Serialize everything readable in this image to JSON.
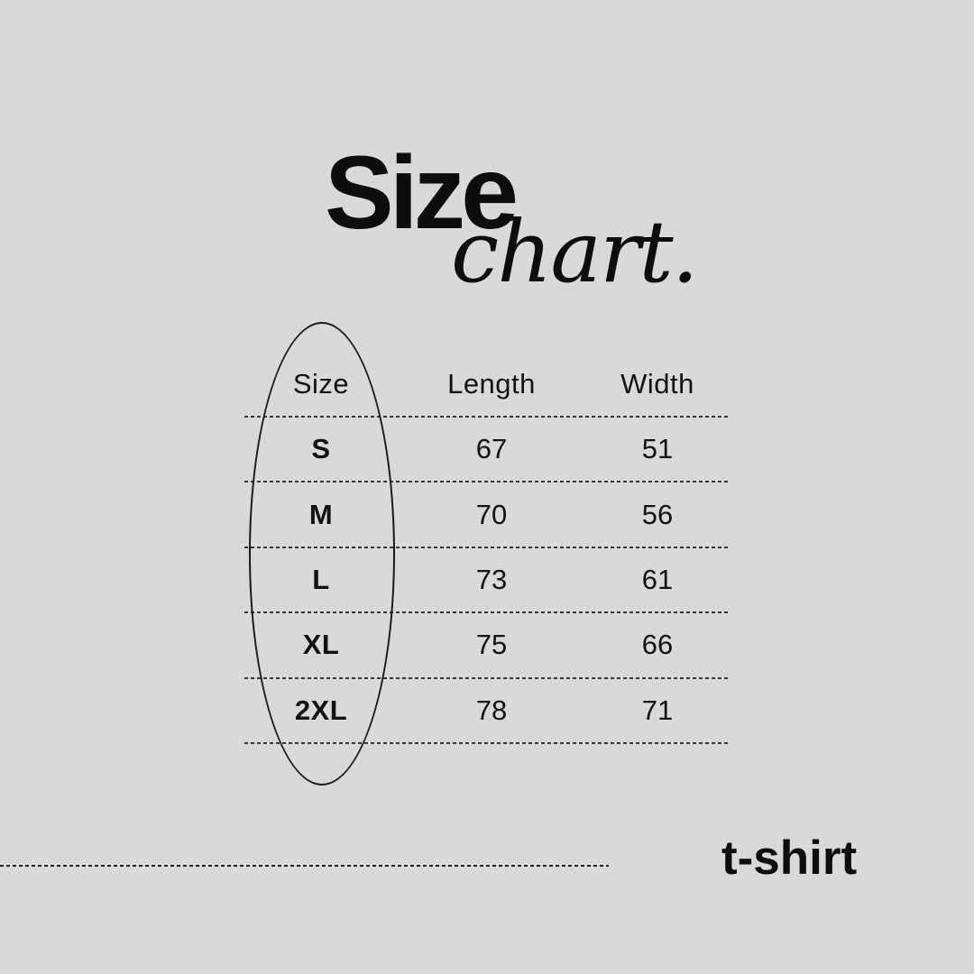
{
  "colors": {
    "background": "#d9d9d8",
    "ink": "#121212",
    "title_ink": "#0d0d0d"
  },
  "title": {
    "main": "Size",
    "script": "chart."
  },
  "table": {
    "headers": [
      "Size",
      "Length",
      "Width"
    ],
    "rows": [
      {
        "size": "S",
        "length": "67",
        "width": "51"
      },
      {
        "size": "M",
        "length": "70",
        "width": "56"
      },
      {
        "size": "L",
        "length": "73",
        "width": "61"
      },
      {
        "size": "XL",
        "length": "75",
        "width": "66"
      },
      {
        "size": "2XL",
        "length": "78",
        "width": "71"
      }
    ]
  },
  "footer": {
    "product_label": "t-shirt"
  },
  "chart_data": {
    "type": "table",
    "title": "Size chart.",
    "columns": [
      "Size",
      "Length",
      "Width"
    ],
    "rows": [
      [
        "S",
        67,
        51
      ],
      [
        "M",
        70,
        56
      ],
      [
        "L",
        73,
        61
      ],
      [
        "XL",
        75,
        66
      ],
      [
        "2XL",
        78,
        71
      ]
    ],
    "annotations": [
      "hand-drawn ellipse circling the Size column",
      "dashed horizontal row separators",
      "bottom-left dashed rule",
      "t-shirt label bottom-right"
    ],
    "legend_position": "none",
    "grid": "dashed-horizontal-only"
  }
}
